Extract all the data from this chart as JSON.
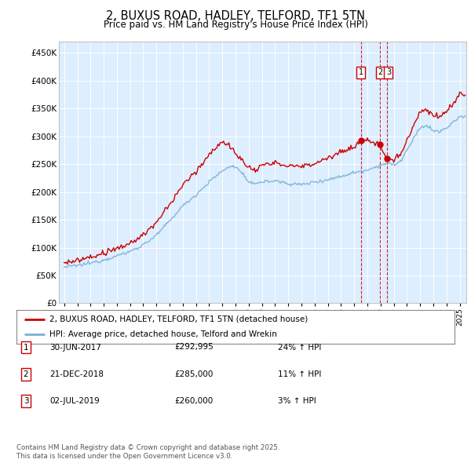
{
  "title": "2, BUXUS ROAD, HADLEY, TELFORD, TF1 5TN",
  "subtitle": "Price paid vs. HM Land Registry's House Price Index (HPI)",
  "legend_line1": "2, BUXUS ROAD, HADLEY, TELFORD, TF1 5TN (detached house)",
  "legend_line2": "HPI: Average price, detached house, Telford and Wrekin",
  "transactions": [
    {
      "label": "1",
      "date": "30-JUN-2017",
      "price": 292995,
      "hpi_pct": "24%",
      "x_year": 2017.5
    },
    {
      "label": "2",
      "date": "21-DEC-2018",
      "price": 285000,
      "hpi_pct": "11%",
      "x_year": 2018.97
    },
    {
      "label": "3",
      "date": "02-JUL-2019",
      "price": 260000,
      "hpi_pct": "3%",
      "x_year": 2019.5
    }
  ],
  "footnote1": "Contains HM Land Registry data © Crown copyright and database right 2025.",
  "footnote2": "This data is licensed under the Open Government Licence v3.0.",
  "hpi_color": "#7ab0d4",
  "price_color": "#cc0000",
  "plot_bg_color": "#ddeeff",
  "ylim": [
    0,
    470000
  ],
  "yticks": [
    0,
    50000,
    100000,
    150000,
    200000,
    250000,
    300000,
    350000,
    400000,
    450000
  ],
  "xlim_start": 1994.6,
  "xlim_end": 2025.5
}
